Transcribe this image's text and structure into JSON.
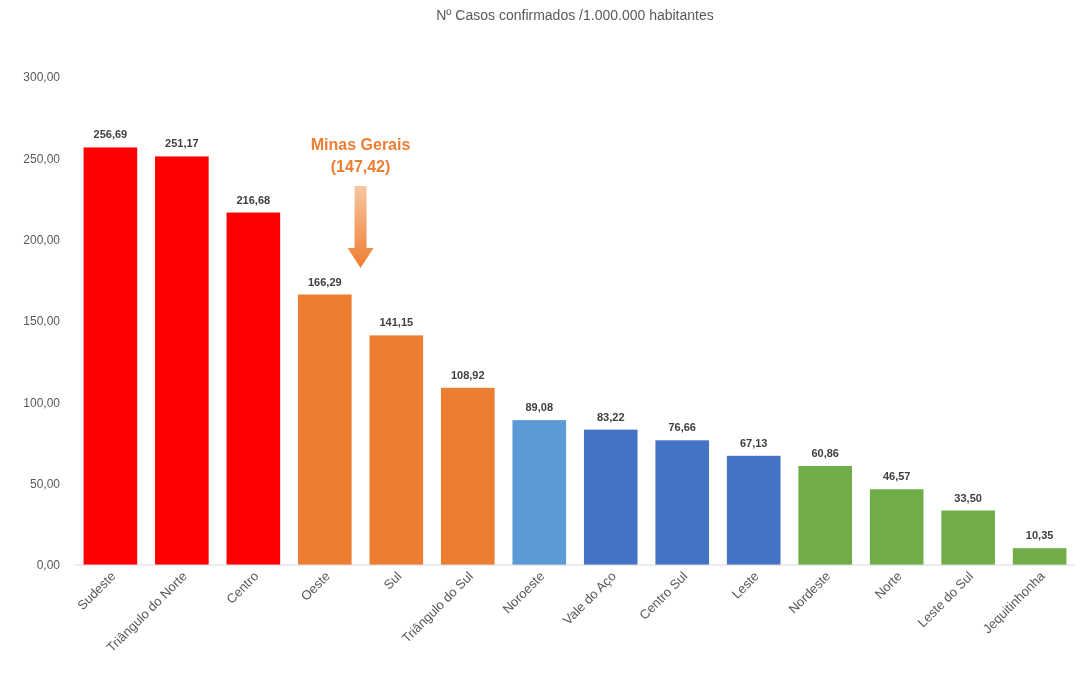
{
  "chart_data": {
    "type": "bar",
    "title": "Nº Casos confirmados /1.000.000 habitantes",
    "categories": [
      "Sudeste",
      "Triângulo do Norte",
      "Centro",
      "Oeste",
      "Sul",
      "Triângulo do Sul",
      "Noroeste",
      "Vale do Aço",
      "Centro Sul",
      "Leste",
      "Nordeste",
      "Norte",
      "Leste do Sul",
      "Jequitinhonha"
    ],
    "values": [
      256.69,
      251.17,
      216.68,
      166.29,
      141.15,
      108.92,
      89.08,
      83.22,
      76.66,
      67.13,
      60.86,
      46.57,
      33.5,
      10.35
    ],
    "colors": [
      "#ff0000",
      "#ff0000",
      "#ff0000",
      "#ed7d31",
      "#ed7d31",
      "#ed7d31",
      "#5b9bd5",
      "#4472c4",
      "#4472c4",
      "#4472c4",
      "#70ad47",
      "#70ad47",
      "#70ad47",
      "#70ad47"
    ],
    "value_labels": [
      "256,69",
      "251,17",
      "216,68",
      "166,29",
      "141,15",
      "108,92",
      "89,08",
      "83,22",
      "76,66",
      "67,13",
      "60,86",
      "46,57",
      "33,50",
      "10,35"
    ],
    "ylim": [
      0,
      300
    ],
    "yticks": [
      {
        "value": 0,
        "label": "0,00"
      },
      {
        "value": 50,
        "label": "50,00"
      },
      {
        "value": 100,
        "label": "100,00"
      },
      {
        "value": 150,
        "label": "150,00"
      },
      {
        "value": 200,
        "label": "200,00"
      },
      {
        "value": 250,
        "label": "250,00"
      },
      {
        "value": 300,
        "label": "300,00"
      }
    ],
    "annotations": [
      "Minas Gerais\n(147,42)"
    ],
    "grid": false
  }
}
